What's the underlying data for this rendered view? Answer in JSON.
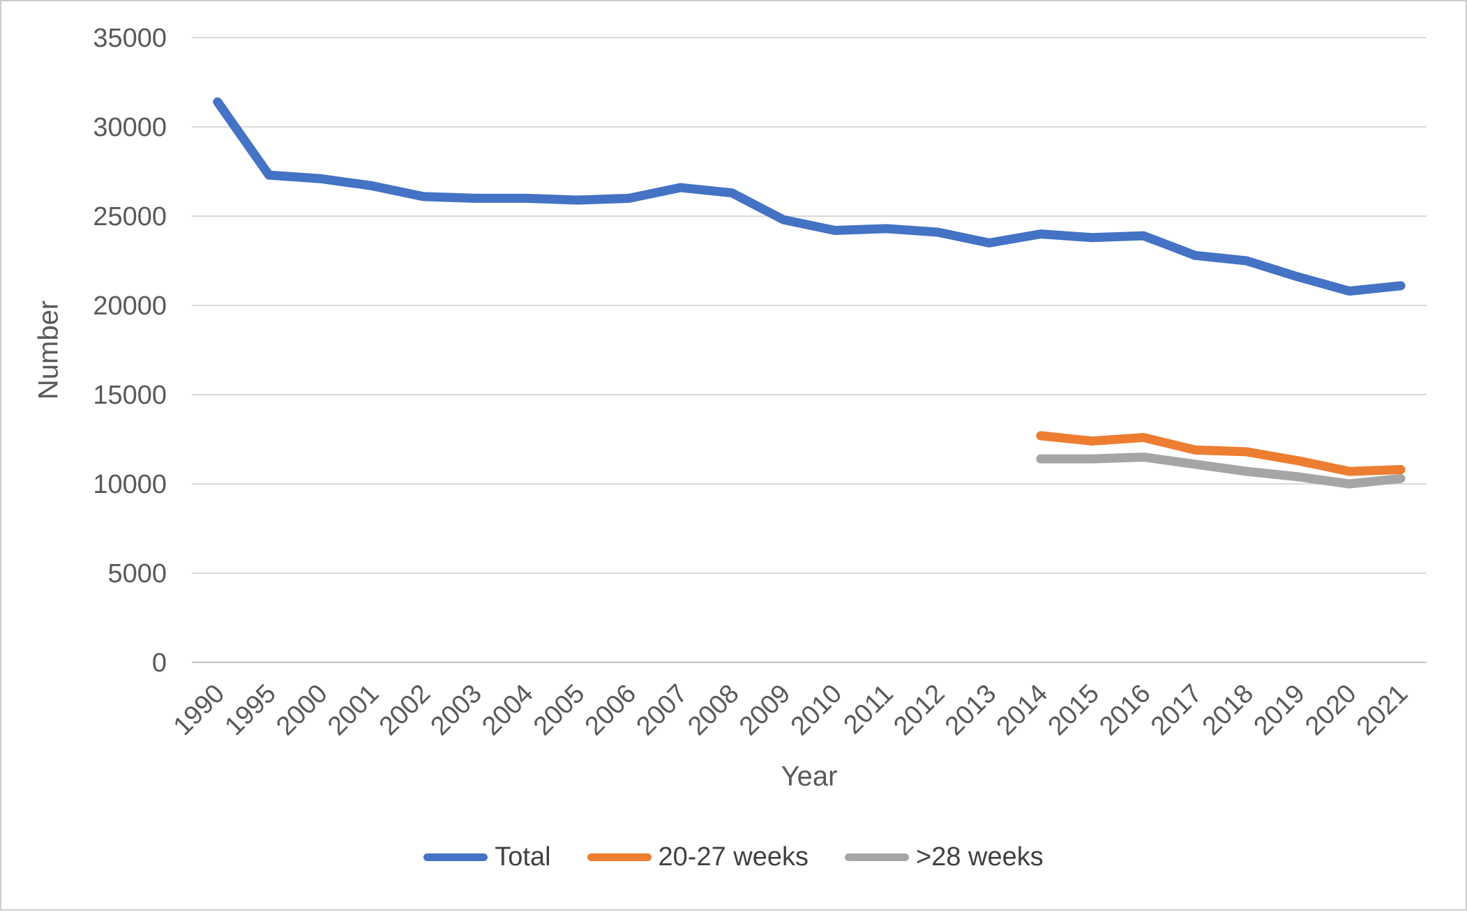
{
  "chart_data": {
    "type": "line",
    "title": "",
    "xlabel": "Year",
    "ylabel": "Number",
    "categories": [
      "1990",
      "1995",
      "2000",
      "2001",
      "2002",
      "2003",
      "2004",
      "2005",
      "2006",
      "2007",
      "2008",
      "2009",
      "2010",
      "2011",
      "2012",
      "2013",
      "2014",
      "2015",
      "2016",
      "2017",
      "2018",
      "2019",
      "2020",
      "2021"
    ],
    "series": [
      {
        "name": "Total",
        "color": "#4472C4",
        "values": [
          31400,
          27300,
          27100,
          26700,
          26100,
          26000,
          26000,
          25900,
          26000,
          26600,
          26300,
          24800,
          24200,
          24300,
          24100,
          23500,
          24000,
          23800,
          23900,
          22800,
          22500,
          21600,
          20800,
          21100
        ]
      },
      {
        "name": "20-27 weeks",
        "color": "#ED7D31",
        "values": [
          null,
          null,
          null,
          null,
          null,
          null,
          null,
          null,
          null,
          null,
          null,
          null,
          null,
          null,
          null,
          null,
          12700,
          12400,
          12600,
          11900,
          11800,
          11300,
          10700,
          10800
        ]
      },
      {
        "name": ">28 weeks",
        "color": "#A5A5A5",
        "values": [
          null,
          null,
          null,
          null,
          null,
          null,
          null,
          null,
          null,
          null,
          null,
          null,
          null,
          null,
          null,
          null,
          11400,
          11400,
          11500,
          11100,
          10700,
          10400,
          10000,
          10300
        ]
      }
    ],
    "ylim": [
      0,
      35000
    ],
    "ytick_step": 5000,
    "grid": "horizontal",
    "legend_position": "bottom"
  },
  "style": {
    "background_color": "#FFFFFF",
    "border_color": "#C9CDCD",
    "gridline_color": "#D9D9D9",
    "axis_line_color": "#BFBFBF",
    "tick_label_color": "#595959",
    "axis_title_color": "#595959",
    "legend_label_color": "#404040"
  }
}
